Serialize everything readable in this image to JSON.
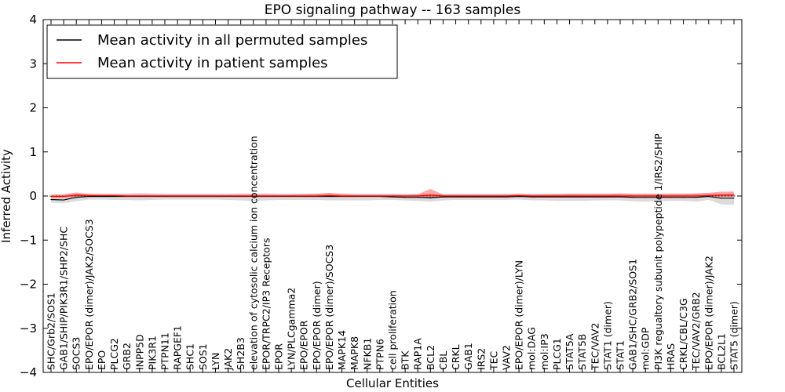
{
  "chart_data": {
    "type": "line",
    "title": "EPO signaling pathway -- 163 samples",
    "xlabel": "Cellular Entities",
    "ylabel": "Inferred Activity",
    "ylim": [
      -4,
      4
    ],
    "yticks": [
      -4,
      -3,
      -2,
      -1,
      0,
      1,
      2,
      3,
      4
    ],
    "ytick_labels": [
      "−4",
      "−3",
      "−2",
      "−1",
      "0",
      "1",
      "2",
      "3",
      "4"
    ],
    "legend_position": "top-left",
    "categories": [
      "SHC/Grb2/SOS1",
      "GAB1/SHIP/PIK3R1/SHP2/SHC",
      "SOCS3",
      "EPO/EPOR (dimer)/JAK2/SOCS3",
      "EPO",
      "PLCG2",
      "GRB2",
      "INPP5D",
      "PIK3R1",
      "PTPN11",
      "RAPGEF1",
      "SHC1",
      "SOS1",
      "LYN",
      "JAK2",
      "SH2B3",
      "elevation of cytosolic calcium ion concentration",
      "EPOR/TRPC2/IP3 Receptors",
      "EPOR",
      "LYN/PLCgamma2",
      "EPO/EPOR",
      "EPO/EPOR (dimer)",
      "EPO/EPOR (dimer)/SOCS3",
      "MAPK14",
      "MAPK8",
      "NFKB1",
      "PTPN6",
      "cell proliferation",
      "BTK",
      "RAP1A",
      "BCL2",
      "CBL",
      "CRKL",
      "GAB1",
      "IRS2",
      "TEC",
      "VAV2",
      "EPO/EPOR (dimer)/LYN",
      "mol:DAG",
      "mol:IP3",
      "PLCG1",
      "STAT5A",
      "STAT5B",
      "TEC/VAV2",
      "STAT1 (dimer)",
      "STAT1",
      "GAB1/SHC/GRB2/SOS1",
      "mol:GDP",
      "PI3K regualtory subunit polypeptide 1/IRS2/SHIP",
      "HRAS",
      "CRKL/CBL/C3G",
      "TEC/VAV2/GRB2",
      "EPO/EPOR (dimer)/JAK2",
      "BCL2L1",
      "STAT5 (dimer)"
    ],
    "series": [
      {
        "name": "Mean activity in all permuted samples",
        "color": "#000000",
        "values": [
          -0.08,
          -0.09,
          -0.03,
          -0.01,
          -0.01,
          -0.01,
          -0.01,
          -0.01,
          -0.01,
          -0.01,
          -0.01,
          -0.01,
          -0.01,
          -0.01,
          -0.01,
          -0.01,
          -0.01,
          -0.01,
          -0.01,
          -0.01,
          -0.01,
          -0.01,
          -0.01,
          -0.01,
          -0.01,
          -0.01,
          -0.01,
          -0.02,
          -0.03,
          -0.03,
          -0.04,
          -0.02,
          -0.02,
          -0.02,
          -0.02,
          -0.02,
          -0.02,
          -0.01,
          -0.02,
          -0.02,
          -0.02,
          -0.02,
          -0.02,
          -0.02,
          -0.02,
          -0.02,
          -0.03,
          -0.03,
          -0.03,
          -0.03,
          -0.03,
          -0.03,
          -0.01,
          -0.05,
          -0.05
        ],
        "band_low": [
          -0.15,
          -0.16,
          -0.12,
          -0.08,
          -0.08,
          -0.09,
          -0.09,
          -0.1,
          -0.09,
          -0.08,
          -0.08,
          -0.08,
          -0.08,
          -0.08,
          -0.09,
          -0.1,
          -0.11,
          -0.1,
          -0.09,
          -0.09,
          -0.09,
          -0.09,
          -0.1,
          -0.1,
          -0.1,
          -0.1,
          -0.09,
          -0.09,
          -0.1,
          -0.11,
          -0.13,
          -0.1,
          -0.09,
          -0.09,
          -0.09,
          -0.09,
          -0.09,
          -0.08,
          -0.1,
          -0.1,
          -0.11,
          -0.11,
          -0.11,
          -0.1,
          -0.1,
          -0.1,
          -0.12,
          -0.13,
          -0.12,
          -0.11,
          -0.11,
          -0.13,
          -0.09,
          -0.19,
          -0.2
        ],
        "band_high": [
          0.02,
          0.02,
          0.05,
          0.06,
          0.06,
          0.06,
          0.06,
          0.07,
          0.06,
          0.05,
          0.05,
          0.05,
          0.05,
          0.05,
          0.05,
          0.06,
          0.06,
          0.06,
          0.05,
          0.05,
          0.05,
          0.05,
          0.06,
          0.06,
          0.05,
          0.05,
          0.05,
          0.05,
          0.04,
          0.04,
          0.04,
          0.05,
          0.05,
          0.05,
          0.05,
          0.05,
          0.05,
          0.06,
          0.05,
          0.05,
          0.05,
          0.05,
          0.05,
          0.05,
          0.05,
          0.05,
          0.04,
          0.04,
          0.04,
          0.05,
          0.05,
          0.05,
          0.06,
          0.05,
          0.05
        ]
      },
      {
        "name": "Mean activity in patient samples",
        "color": "#ff0000",
        "values": [
          -0.01,
          -0.01,
          0.02,
          0.01,
          0.01,
          0.01,
          0.0,
          0.0,
          0.0,
          0.0,
          0.0,
          0.0,
          0.0,
          0.0,
          0.0,
          0.0,
          0.0,
          0.0,
          0.0,
          0.0,
          0.0,
          0.0,
          0.01,
          0.0,
          0.0,
          0.0,
          0.0,
          0.0,
          0.0,
          0.0,
          0.02,
          0.0,
          0.0,
          0.0,
          0.0,
          0.0,
          0.0,
          0.01,
          0.0,
          0.0,
          0.0,
          0.0,
          0.0,
          0.0,
          0.0,
          0.0,
          0.0,
          0.0,
          0.0,
          0.0,
          0.0,
          0.0,
          0.01,
          0.02,
          0.02
        ],
        "band_low": [
          -0.04,
          -0.04,
          -0.02,
          -0.02,
          -0.02,
          -0.02,
          -0.02,
          -0.02,
          -0.02,
          -0.02,
          -0.02,
          -0.02,
          -0.02,
          -0.02,
          -0.02,
          -0.02,
          -0.02,
          -0.02,
          -0.02,
          -0.02,
          -0.02,
          -0.02,
          -0.02,
          -0.02,
          -0.02,
          -0.02,
          -0.02,
          -0.02,
          -0.02,
          -0.02,
          -0.06,
          -0.02,
          -0.02,
          -0.02,
          -0.02,
          -0.02,
          -0.02,
          -0.02,
          -0.02,
          -0.02,
          -0.02,
          -0.02,
          -0.02,
          -0.02,
          -0.02,
          -0.02,
          -0.02,
          -0.02,
          -0.02,
          -0.02,
          -0.02,
          -0.02,
          -0.02,
          -0.02,
          -0.02
        ],
        "band_high": [
          0.03,
          0.04,
          0.08,
          0.04,
          0.03,
          0.03,
          0.03,
          0.03,
          0.03,
          0.03,
          0.03,
          0.03,
          0.03,
          0.03,
          0.03,
          0.03,
          0.03,
          0.03,
          0.03,
          0.03,
          0.04,
          0.05,
          0.07,
          0.04,
          0.03,
          0.03,
          0.03,
          0.03,
          0.03,
          0.04,
          0.16,
          0.03,
          0.03,
          0.03,
          0.03,
          0.03,
          0.03,
          0.04,
          0.03,
          0.04,
          0.04,
          0.05,
          0.05,
          0.05,
          0.05,
          0.06,
          0.05,
          0.05,
          0.05,
          0.05,
          0.05,
          0.06,
          0.07,
          0.1,
          0.1
        ]
      }
    ]
  }
}
